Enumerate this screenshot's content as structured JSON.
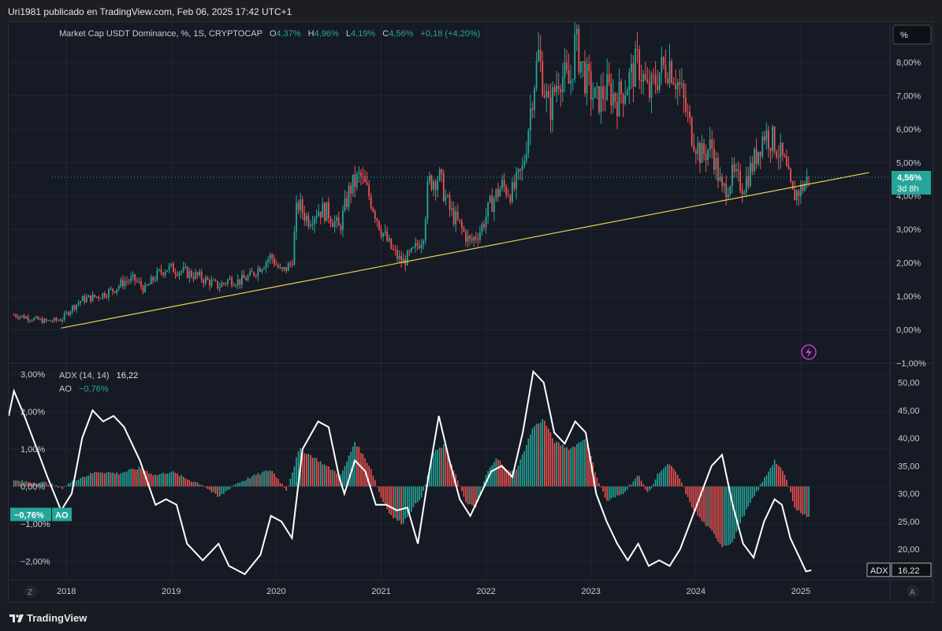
{
  "header": {
    "published": "Uri1981 publicado en TradingView.com, Feb 06, 2025 17:42 UTC+1"
  },
  "legend": {
    "title": "Market Cap USDT Dominance, %, 1S, CRYPTOCAP",
    "o_label": "O",
    "o": "4,37%",
    "h_label": "H",
    "h": "4,96%",
    "l_label": "L",
    "l": "4,19%",
    "c_label": "C",
    "c": "4,56%",
    "change": "+0,18 (+4,20%)"
  },
  "scale_button": "%",
  "price_badge": {
    "value": "4,56%",
    "countdown": "3d 8h"
  },
  "adx_legend": {
    "name": "ADX (14, 14)",
    "value": "16,22"
  },
  "ao_legend": {
    "name": "AO",
    "value": "−0,76%"
  },
  "ao_badge": {
    "value": "−0,76%",
    "label": "AO"
  },
  "adx_badge": {
    "label": "ADX",
    "value": "16,22"
  },
  "corner_left": "Z",
  "corner_right": "A",
  "footer": {
    "brand": "TradingView"
  },
  "colors": {
    "up": "#26a69a",
    "down": "#ef5350",
    "trendline": "#e8d44d",
    "adx": "#ffffff",
    "background": "#161a25"
  },
  "chart_data": [
    {
      "type": "candlestick",
      "title": "Market Cap USDT Dominance, %, 1S, CRYPTOCAP",
      "x_ticks": [
        "2018",
        "2019",
        "2020",
        "2021",
        "2022",
        "2023",
        "2024",
        "2025"
      ],
      "y_ticks": [
        "8,00%",
        "7,00%",
        "6,00%",
        "5,00%",
        "4,00%",
        "3,00%",
        "2,00%",
        "1,00%",
        "0,00%",
        "−1,00%"
      ],
      "ylim": [
        -1,
        9.2
      ],
      "xlim": [
        2017.45,
        2025.85
      ],
      "close_path": [
        [
          2017.5,
          0.45
        ],
        [
          2017.65,
          0.35
        ],
        [
          2017.8,
          0.25
        ],
        [
          2017.95,
          0.3
        ],
        [
          2018.05,
          0.65
        ],
        [
          2018.15,
          0.9
        ],
        [
          2018.3,
          1.0
        ],
        [
          2018.45,
          1.2
        ],
        [
          2018.55,
          1.45
        ],
        [
          2018.65,
          1.5
        ],
        [
          2018.75,
          1.2
        ],
        [
          2018.85,
          1.6
        ],
        [
          2018.95,
          1.85
        ],
        [
          2019.05,
          1.8
        ],
        [
          2019.15,
          1.7
        ],
        [
          2019.25,
          1.6
        ],
        [
          2019.35,
          1.45
        ],
        [
          2019.45,
          1.3
        ],
        [
          2019.55,
          1.5
        ],
        [
          2019.65,
          1.45
        ],
        [
          2019.75,
          1.6
        ],
        [
          2019.85,
          1.9
        ],
        [
          2019.95,
          2.2
        ],
        [
          2020.05,
          1.7
        ],
        [
          2020.15,
          2.0
        ],
        [
          2020.2,
          3.8
        ],
        [
          2020.3,
          3.3
        ],
        [
          2020.4,
          3.6
        ],
        [
          2020.5,
          3.5
        ],
        [
          2020.6,
          3.0
        ],
        [
          2020.7,
          4.2
        ],
        [
          2020.8,
          4.6
        ],
        [
          2020.9,
          3.9
        ],
        [
          2021.0,
          3.0
        ],
        [
          2021.1,
          2.4
        ],
        [
          2021.2,
          2.0
        ],
        [
          2021.3,
          2.3
        ],
        [
          2021.4,
          2.8
        ],
        [
          2021.45,
          4.4
        ],
        [
          2021.55,
          4.6
        ],
        [
          2021.65,
          3.6
        ],
        [
          2021.75,
          3.1
        ],
        [
          2021.85,
          2.6
        ],
        [
          2021.95,
          3.0
        ],
        [
          2022.05,
          3.8
        ],
        [
          2022.15,
          4.3
        ],
        [
          2022.25,
          4.1
        ],
        [
          2022.35,
          4.8
        ],
        [
          2022.4,
          6.0
        ],
        [
          2022.45,
          7.3
        ],
        [
          2022.5,
          8.2
        ],
        [
          2022.6,
          6.5
        ],
        [
          2022.7,
          7.7
        ],
        [
          2022.8,
          7.3
        ],
        [
          2022.85,
          8.6
        ],
        [
          2022.95,
          7.5
        ],
        [
          2023.05,
          6.8
        ],
        [
          2023.15,
          7.2
        ],
        [
          2023.25,
          6.9
        ],
        [
          2023.35,
          7.4
        ],
        [
          2023.45,
          8.0
        ],
        [
          2023.55,
          7.0
        ],
        [
          2023.65,
          7.7
        ],
        [
          2023.75,
          8.0
        ],
        [
          2023.85,
          7.2
        ],
        [
          2023.95,
          6.0
        ],
        [
          2024.05,
          5.2
        ],
        [
          2024.15,
          5.5
        ],
        [
          2024.25,
          4.1
        ],
        [
          2024.35,
          4.6
        ],
        [
          2024.45,
          4.3
        ],
        [
          2024.55,
          5.0
        ],
        [
          2024.65,
          5.9
        ],
        [
          2024.75,
          5.6
        ],
        [
          2024.85,
          4.9
        ],
        [
          2024.92,
          4.0
        ],
        [
          2025.0,
          4.2
        ],
        [
          2025.08,
          4.56
        ]
      ],
      "trendline": {
        "from": [
          2017.95,
          0.05
        ],
        "to": [
          2025.65,
          4.7
        ]
      },
      "last_value": 4.56
    },
    {
      "type": "bar+line",
      "series": [
        {
          "name": "AO",
          "type": "histogram",
          "unit": "%"
        },
        {
          "name": "ADX (14, 14)",
          "type": "line"
        }
      ],
      "left_axis_ticks": [
        "3,00%",
        "2,00%",
        "1,00%",
        "0,00%",
        "−1,00%",
        "−2,00%"
      ],
      "left_ylim": [
        -2.5,
        3.3
      ],
      "right_axis_ticks": [
        "50,00",
        "45,00",
        "40,00",
        "35,00",
        "30,00",
        "25,00",
        "20,00"
      ],
      "right_ylim": [
        14.5,
        53.5
      ],
      "ao_path": [
        [
          2017.5,
          0.15
        ],
        [
          2017.8,
          0.1
        ],
        [
          2017.95,
          -0.05
        ],
        [
          2018.1,
          0.2
        ],
        [
          2018.3,
          0.4
        ],
        [
          2018.5,
          0.35
        ],
        [
          2018.7,
          0.5
        ],
        [
          2018.85,
          0.3
        ],
        [
          2019.0,
          0.4
        ],
        [
          2019.15,
          0.2
        ],
        [
          2019.3,
          0.05
        ],
        [
          2019.45,
          -0.3
        ],
        [
          2019.6,
          0.05
        ],
        [
          2019.8,
          0.3
        ],
        [
          2019.95,
          0.45
        ],
        [
          2020.1,
          -0.1
        ],
        [
          2020.22,
          1.0
        ],
        [
          2020.35,
          0.8
        ],
        [
          2020.5,
          0.5
        ],
        [
          2020.62,
          0.3
        ],
        [
          2020.75,
          1.2
        ],
        [
          2020.9,
          0.5
        ],
        [
          2021.0,
          -0.3
        ],
        [
          2021.1,
          -0.8
        ],
        [
          2021.2,
          -1.0
        ],
        [
          2021.3,
          -0.6
        ],
        [
          2021.4,
          -0.2
        ],
        [
          2021.5,
          0.9
        ],
        [
          2021.6,
          1.1
        ],
        [
          2021.7,
          0.4
        ],
        [
          2021.8,
          -0.4
        ],
        [
          2021.9,
          -0.6
        ],
        [
          2022.0,
          0.3
        ],
        [
          2022.1,
          0.8
        ],
        [
          2022.2,
          0.4
        ],
        [
          2022.3,
          0.5
        ],
        [
          2022.45,
          1.6
        ],
        [
          2022.55,
          1.8
        ],
        [
          2022.65,
          1.2
        ],
        [
          2022.8,
          1.0
        ],
        [
          2022.95,
          1.3
        ],
        [
          2023.05,
          0.3
        ],
        [
          2023.15,
          -0.4
        ],
        [
          2023.3,
          -0.2
        ],
        [
          2023.45,
          0.3
        ],
        [
          2023.55,
          -0.2
        ],
        [
          2023.65,
          0.4
        ],
        [
          2023.75,
          0.6
        ],
        [
          2023.85,
          0.2
        ],
        [
          2023.95,
          -0.5
        ],
        [
          2024.05,
          -0.9
        ],
        [
          2024.15,
          -1.2
        ],
        [
          2024.25,
          -1.6
        ],
        [
          2024.35,
          -1.5
        ],
        [
          2024.45,
          -0.8
        ],
        [
          2024.55,
          -0.3
        ],
        [
          2024.65,
          0.2
        ],
        [
          2024.75,
          0.7
        ],
        [
          2024.85,
          0.3
        ],
        [
          2024.95,
          -0.6
        ],
        [
          2025.05,
          -0.8
        ],
        [
          2025.1,
          -0.76
        ]
      ],
      "adx_path": [
        [
          2017.45,
          44
        ],
        [
          2017.5,
          48.5
        ],
        [
          2017.6,
          44
        ],
        [
          2017.7,
          39
        ],
        [
          2017.82,
          33
        ],
        [
          2017.95,
          27
        ],
        [
          2018.05,
          30
        ],
        [
          2018.15,
          40
        ],
        [
          2018.25,
          45
        ],
        [
          2018.35,
          43
        ],
        [
          2018.45,
          44
        ],
        [
          2018.55,
          42
        ],
        [
          2018.7,
          36
        ],
        [
          2018.85,
          28
        ],
        [
          2018.95,
          29
        ],
        [
          2019.05,
          28
        ],
        [
          2019.15,
          21
        ],
        [
          2019.3,
          18
        ],
        [
          2019.45,
          21
        ],
        [
          2019.55,
          17
        ],
        [
          2019.7,
          15.5
        ],
        [
          2019.85,
          19
        ],
        [
          2019.95,
          26
        ],
        [
          2020.05,
          25
        ],
        [
          2020.15,
          22
        ],
        [
          2020.25,
          38
        ],
        [
          2020.4,
          43
        ],
        [
          2020.5,
          42
        ],
        [
          2020.6,
          33
        ],
        [
          2020.65,
          30
        ],
        [
          2020.75,
          36
        ],
        [
          2020.85,
          34
        ],
        [
          2020.95,
          28
        ],
        [
          2021.05,
          28
        ],
        [
          2021.15,
          27
        ],
        [
          2021.25,
          27.5
        ],
        [
          2021.35,
          21
        ],
        [
          2021.45,
          33
        ],
        [
          2021.55,
          44
        ],
        [
          2021.65,
          36
        ],
        [
          2021.75,
          29
        ],
        [
          2021.85,
          26
        ],
        [
          2021.95,
          30
        ],
        [
          2022.05,
          34
        ],
        [
          2022.15,
          35
        ],
        [
          2022.25,
          33
        ],
        [
          2022.35,
          41
        ],
        [
          2022.45,
          52
        ],
        [
          2022.55,
          50
        ],
        [
          2022.65,
          41
        ],
        [
          2022.75,
          39
        ],
        [
          2022.85,
          43
        ],
        [
          2022.95,
          41
        ],
        [
          2023.05,
          30
        ],
        [
          2023.15,
          25
        ],
        [
          2023.25,
          21
        ],
        [
          2023.35,
          18
        ],
        [
          2023.45,
          21
        ],
        [
          2023.55,
          17
        ],
        [
          2023.65,
          18
        ],
        [
          2023.75,
          17
        ],
        [
          2023.85,
          20
        ],
        [
          2023.95,
          25
        ],
        [
          2024.05,
          30
        ],
        [
          2024.15,
          35
        ],
        [
          2024.25,
          37
        ],
        [
          2024.35,
          28
        ],
        [
          2024.45,
          21
        ],
        [
          2024.55,
          18.5
        ],
        [
          2024.65,
          25
        ],
        [
          2024.75,
          29
        ],
        [
          2024.82,
          28
        ],
        [
          2024.9,
          22
        ],
        [
          2025.0,
          18
        ],
        [
          2025.05,
          16
        ],
        [
          2025.1,
          16.22
        ]
      ]
    }
  ]
}
